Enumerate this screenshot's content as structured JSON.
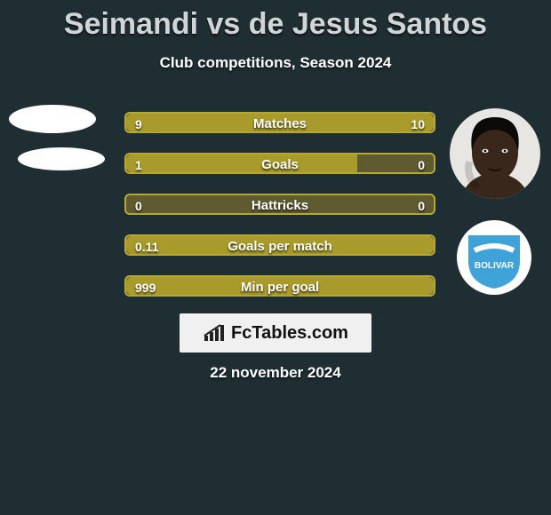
{
  "background_color": "#1e2e33",
  "title": {
    "text": "Seimandi vs de Jesus Santos",
    "fontsize": 34,
    "color": "#d2d5d6"
  },
  "subtitle": {
    "text": "Club competitions, Season 2024",
    "fontsize": 17,
    "color": "#ffffff"
  },
  "left_avatars": {
    "top_color": "#ffffff",
    "bottom_color": "#ffffff"
  },
  "right_avatar": {
    "bg_color": "#e8e6e2",
    "face_color": "#3a271b",
    "hair_color": "#0c0a09"
  },
  "right_badge": {
    "bg_color": "#ffffff",
    "shield_color": "#3fa2d9",
    "text": "BOLIVAR",
    "text_color": "#ffffff"
  },
  "bars": {
    "fill_color": "#a89a2b",
    "track_color": "#5f5a30",
    "border_color": "#b5a835",
    "label_color": "#ffffff",
    "value_color": "#ffffff",
    "rows": [
      {
        "label": "Matches",
        "left_val": "9",
        "right_val": "10",
        "left_frac": 0.47,
        "right_frac": 0.53
      },
      {
        "label": "Goals",
        "left_val": "1",
        "right_val": "0",
        "left_frac": 0.75,
        "right_frac": 0.0
      },
      {
        "label": "Hattricks",
        "left_val": "0",
        "right_val": "0",
        "left_frac": 0.0,
        "right_frac": 0.0
      },
      {
        "label": "Goals per match",
        "left_val": "0.11",
        "right_val": "",
        "left_frac": 1.0,
        "right_frac": 0.0
      },
      {
        "label": "Min per goal",
        "left_val": "999",
        "right_val": "",
        "left_frac": 1.0,
        "right_frac": 0.0
      }
    ]
  },
  "watermark": {
    "text": "FcTables.com",
    "bg_color": "#f0f0f0",
    "text_color": "#111111",
    "icon_color": "#222222"
  },
  "date": {
    "text": "22 november 2024",
    "fontsize": 17,
    "color": "#ffffff"
  }
}
